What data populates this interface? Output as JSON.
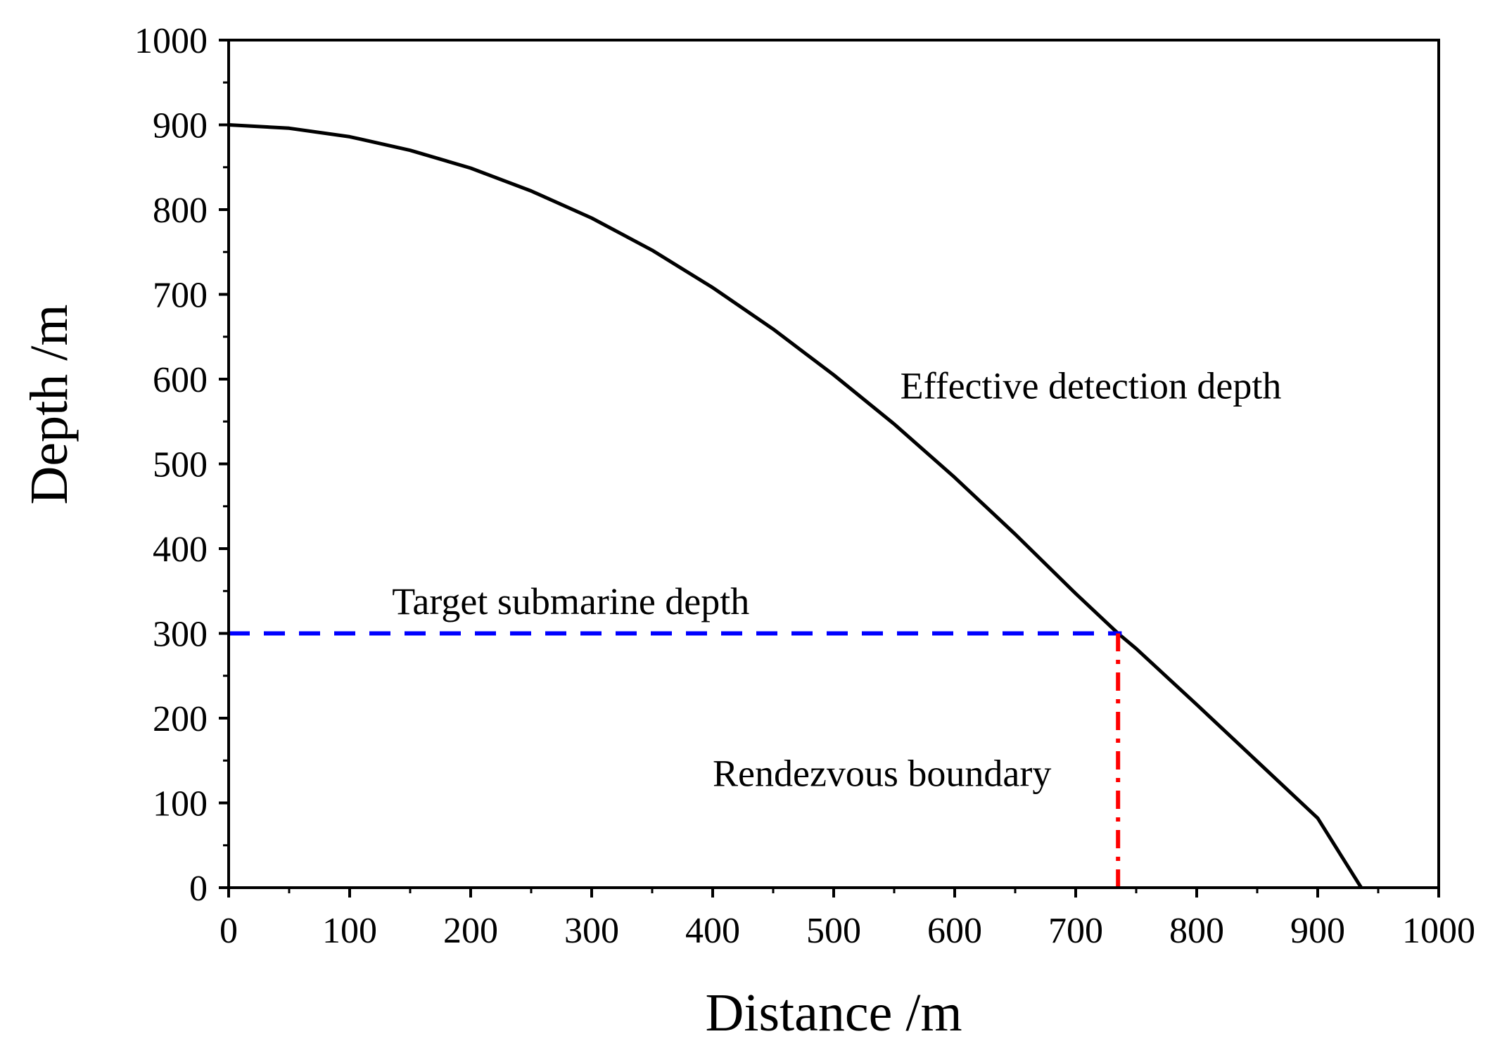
{
  "chart_data": {
    "type": "line",
    "title": "",
    "xlabel": "Distance /m",
    "ylabel": "Depth /m",
    "xlim": [
      0,
      1000
    ],
    "ylim": [
      0,
      1000
    ],
    "xticks": [
      "0",
      "100",
      "200",
      "300",
      "400",
      "500",
      "600",
      "700",
      "800",
      "900",
      "1000"
    ],
    "yticks": [
      "0",
      "100",
      "200",
      "300",
      "400",
      "500",
      "600",
      "700",
      "800",
      "900",
      "1000"
    ],
    "grid": false,
    "legend": "none",
    "series": [
      {
        "name": "Effective detection depth",
        "style": "solid",
        "color": "#000000",
        "points": [
          [
            0,
            900
          ],
          [
            50,
            896
          ],
          [
            100,
            886
          ],
          [
            150,
            870
          ],
          [
            200,
            849
          ],
          [
            250,
            822
          ],
          [
            300,
            790
          ],
          [
            350,
            752
          ],
          [
            400,
            708
          ],
          [
            450,
            659
          ],
          [
            500,
            605
          ],
          [
            550,
            547
          ],
          [
            600,
            484
          ],
          [
            650,
            417
          ],
          [
            700,
            347
          ],
          [
            735,
            300
          ],
          [
            750,
            282
          ],
          [
            800,
            216
          ],
          [
            850,
            149
          ],
          [
            900,
            82
          ],
          [
            936,
            0
          ]
        ]
      },
      {
        "name": "Target submarine depth",
        "style": "dashed",
        "color": "#0000ff",
        "points": [
          [
            0,
            300
          ],
          [
            738,
            300
          ]
        ]
      },
      {
        "name": "Rendezvous boundary",
        "style": "dash-dot",
        "color": "#ff0000",
        "points": [
          [
            735,
            0
          ],
          [
            735,
            300
          ]
        ]
      }
    ],
    "annotations": [
      {
        "text": "Effective detection depth",
        "x": 555,
        "y": 577
      },
      {
        "text": "Target submarine depth",
        "x": 135,
        "y": 323
      },
      {
        "text": "Rendezvous boundary",
        "x": 400,
        "y": 120
      }
    ]
  }
}
